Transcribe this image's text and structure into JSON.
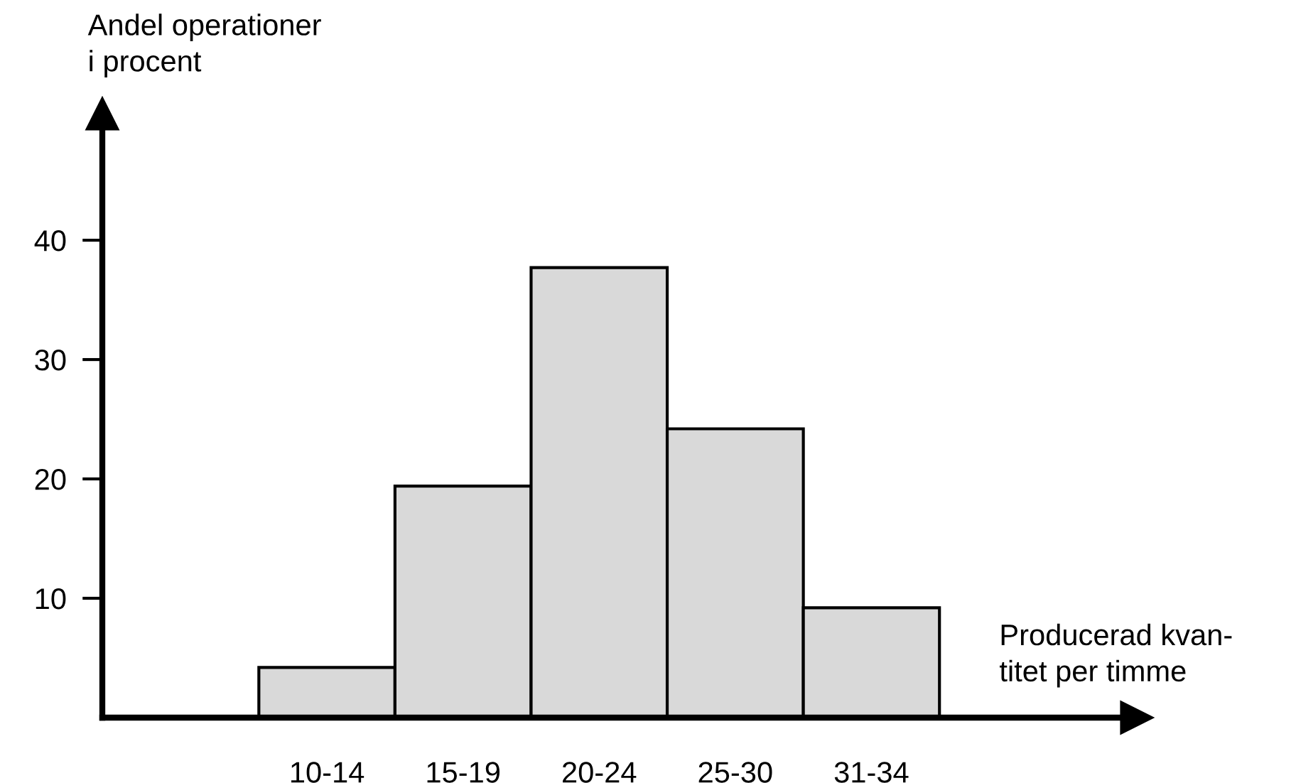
{
  "chart_data": {
    "type": "bar",
    "ylabel": "Andel operationer\ni procent",
    "xlabel": "Producerad kvan-\ntitet per timme",
    "categories": [
      "10-14",
      "15-19",
      "20-24",
      "25-30",
      "31-34"
    ],
    "values": [
      4.2,
      19.4,
      37.7,
      24.2,
      9.2
    ],
    "color": "#d9d9d9",
    "ylim": [
      0,
      50.6
    ],
    "yticks": [
      10,
      20,
      30,
      40
    ],
    "grid": false,
    "legend": false
  }
}
